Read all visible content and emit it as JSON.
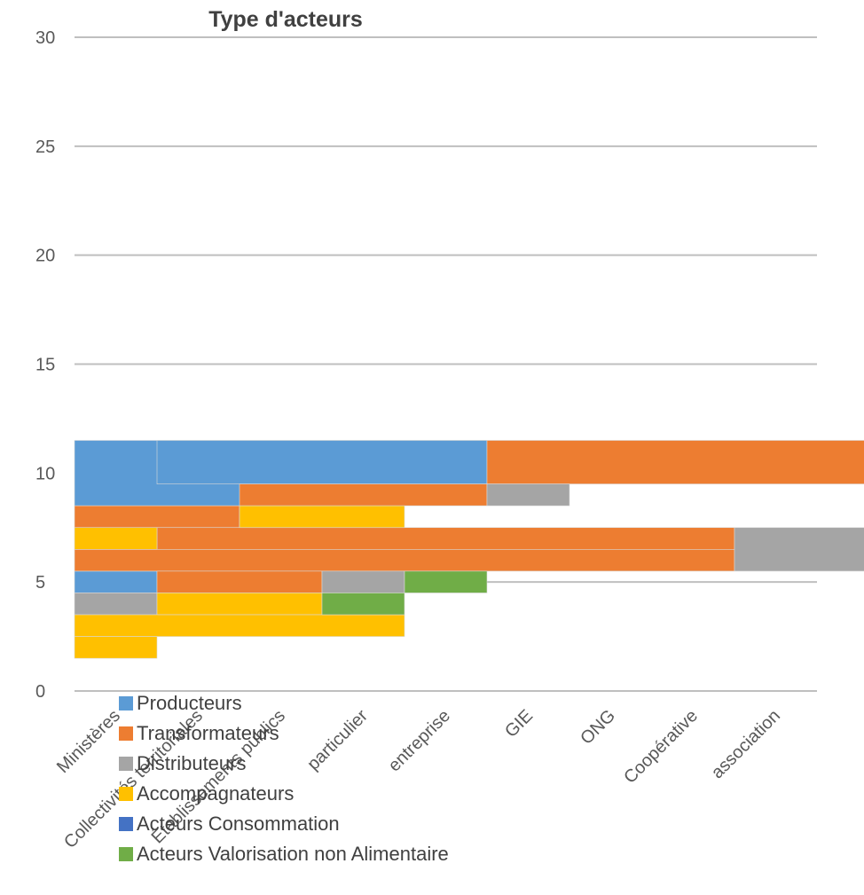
{
  "chart_data": {
    "type": "bar",
    "title": "Type d'acteurs",
    "ylim": [
      0,
      30
    ],
    "yticks": [
      0,
      5,
      10,
      15,
      20,
      25,
      30
    ],
    "grid": true,
    "legend_position": "bottom-left",
    "categories": [
      "Ministères",
      "Collectivités territoriales",
      "Établissements publics",
      "particulier",
      "entreprise",
      "GIE",
      "ONG",
      "Coopérative",
      "association"
    ],
    "series": [
      {
        "name": "Producteurs",
        "color": "#5b9bd5",
        "segments": [
          {
            "from": 0,
            "to": 5,
            "y0": 8.5,
            "y1": 11.5
          },
          {
            "from": 1,
            "to": 5,
            "y0": 9.5,
            "y1": 11.5
          },
          {
            "from": 0,
            "to": 1,
            "y0": 4.5,
            "y1": 5.5
          }
        ]
      },
      {
        "name": "Transformateurs",
        "color": "#ed7d31",
        "segments": [
          {
            "from": 5,
            "to": 10,
            "y0": 9.5,
            "y1": 11.5
          },
          {
            "from": 2,
            "to": 5,
            "y0": 8.5,
            "y1": 9.5
          },
          {
            "from": 0,
            "to": 2,
            "y0": 7.5,
            "y1": 8.5
          },
          {
            "from": 1,
            "to": 8,
            "y0": 6.5,
            "y1": 7.5
          },
          {
            "from": 0,
            "to": 8,
            "y0": 5.5,
            "y1": 6.5
          },
          {
            "from": 1,
            "to": 3,
            "y0": 4.5,
            "y1": 5.5
          }
        ]
      },
      {
        "name": "Distributeurs",
        "color": "#a5a5a5",
        "segments": [
          {
            "from": 5,
            "to": 6,
            "y0": 8.5,
            "y1": 9.5
          },
          {
            "from": 8,
            "to": 10,
            "y0": 5.5,
            "y1": 7.5
          },
          {
            "from": 3,
            "to": 4,
            "y0": 4.5,
            "y1": 5.5
          },
          {
            "from": 0,
            "to": 1,
            "y0": 3.5,
            "y1": 4.5
          }
        ]
      },
      {
        "name": "Accompagnateurs",
        "color": "#ffc000",
        "segments": [
          {
            "from": 2,
            "to": 4,
            "y0": 7.5,
            "y1": 8.5
          },
          {
            "from": 0,
            "to": 1,
            "y0": 6.5,
            "y1": 7.5
          },
          {
            "from": 1,
            "to": 3,
            "y0": 3.5,
            "y1": 4.5
          },
          {
            "from": 0,
            "to": 4,
            "y0": 2.5,
            "y1": 3.5
          },
          {
            "from": 0,
            "to": 1,
            "y0": 1.5,
            "y1": 2.5
          }
        ]
      },
      {
        "name": "Acteurs Consommation",
        "color": "#4472c4",
        "segments": []
      },
      {
        "name": "Acteurs Valorisation non Alimentaire",
        "color": "#70ad47",
        "segments": [
          {
            "from": 4,
            "to": 5,
            "y0": 4.5,
            "y1": 5.5
          },
          {
            "from": 3,
            "to": 4,
            "y0": 3.5,
            "y1": 4.5
          }
        ]
      }
    ]
  }
}
